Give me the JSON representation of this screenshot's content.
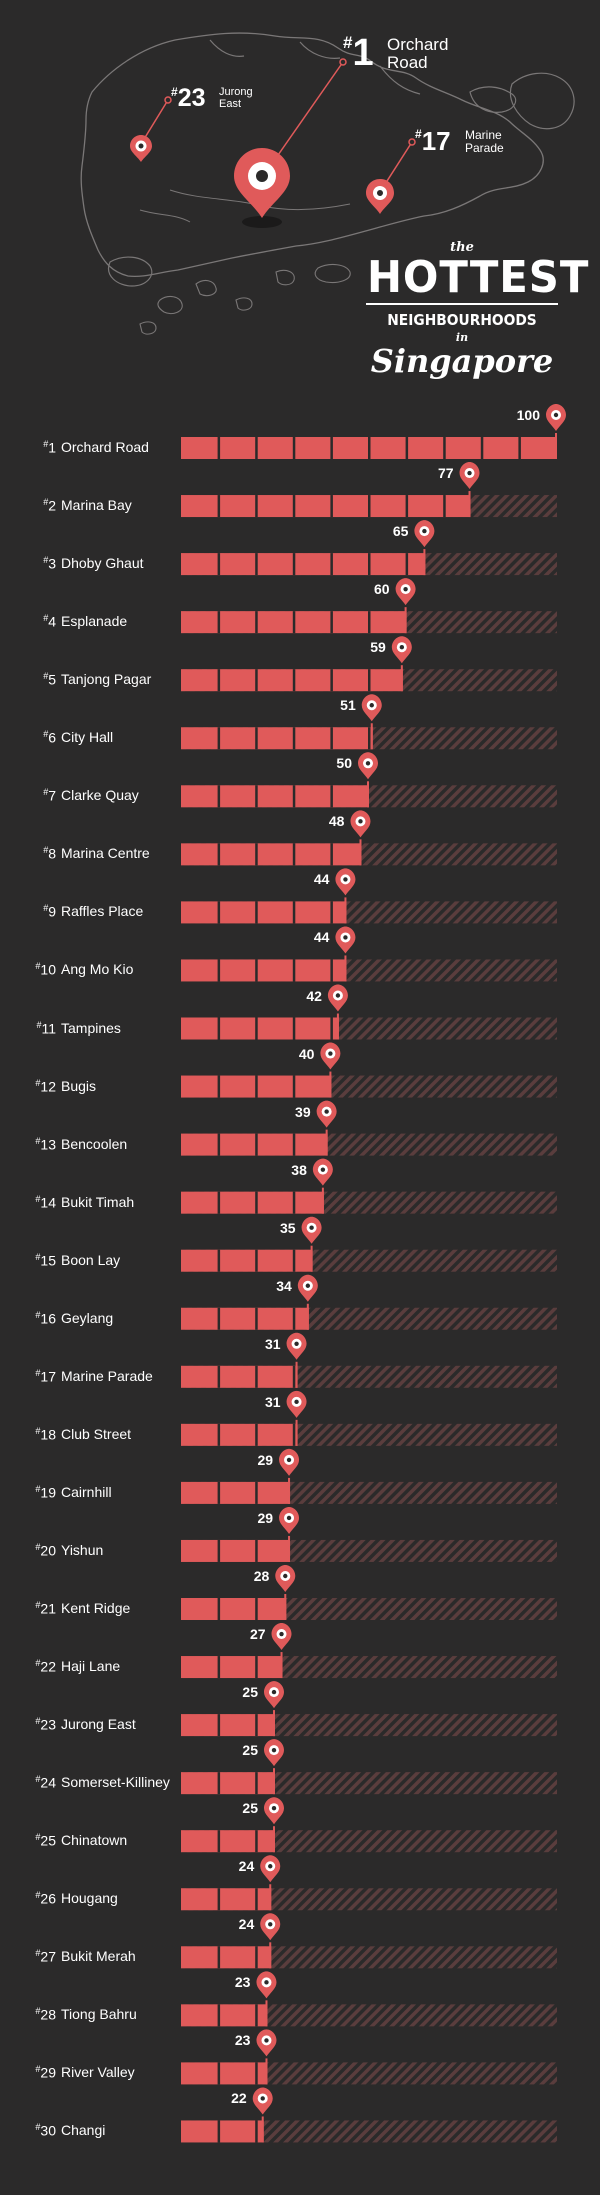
{
  "header": {
    "callouts": [
      {
        "rank": "1",
        "name_line1": "Orchard",
        "name_line2": "Road"
      },
      {
        "rank": "23",
        "name_line1": "Jurong",
        "name_line2": "East"
      },
      {
        "rank": "17",
        "name_line1": "Marine",
        "name_line2": "Parade"
      }
    ],
    "title": {
      "the": "the",
      "hottest": "HOTTEST",
      "neighbourhoods": "NEIGHBOURHOODS",
      "in": "in",
      "singapore": "Singapore"
    }
  },
  "colors": {
    "background": "#2b2a2a",
    "bar": "#e05a5a",
    "hatch": "#5a3d3d",
    "text": "#ffffff"
  },
  "chart_data": {
    "type": "bar",
    "orientation": "horizontal",
    "xlim": [
      0,
      100
    ],
    "categories": [
      "Orchard Road",
      "Marina Bay",
      "Dhoby Ghaut",
      "Esplanade",
      "Tanjong Pagar",
      "City Hall",
      "Clarke Quay",
      "Marina Centre",
      "Raffles Place",
      "Ang Mo Kio",
      "Tampines",
      "Bugis",
      "Bencoolen",
      "Bukit Timah",
      "Boon Lay",
      "Geylang",
      "Marine Parade",
      "Club Street",
      "Cairnhill",
      "Yishun",
      "Kent Ridge",
      "Haji Lane",
      "Jurong East",
      "Somerset-Killiney",
      "Chinatown",
      "Hougang",
      "Bukit Merah",
      "Tiong Bahru",
      "River Valley",
      "Changi"
    ],
    "ranks": [
      "1",
      "2",
      "3",
      "4",
      "5",
      "6",
      "7",
      "8",
      "9",
      "10",
      "11",
      "12",
      "13",
      "14",
      "15",
      "16",
      "17",
      "18",
      "19",
      "20",
      "21",
      "22",
      "23",
      "24",
      "25",
      "26",
      "27",
      "28",
      "29",
      "30"
    ],
    "values": [
      100,
      77,
      65,
      60,
      59,
      51,
      50,
      48,
      44,
      44,
      42,
      40,
      39,
      38,
      35,
      34,
      31,
      31,
      29,
      29,
      28,
      27,
      25,
      25,
      25,
      24,
      24,
      23,
      23,
      22
    ]
  }
}
